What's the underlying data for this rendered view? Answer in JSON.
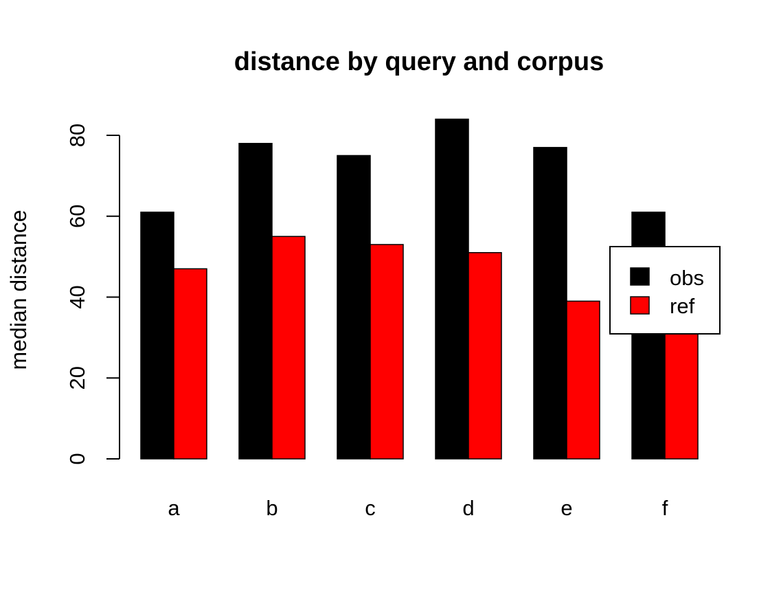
{
  "chart_data": {
    "type": "bar",
    "title": "distance by query and corpus",
    "xlabel": "",
    "ylabel": "median distance",
    "categories": [
      "a",
      "b",
      "c",
      "d",
      "e",
      "f"
    ],
    "series": [
      {
        "name": "obs",
        "color": "#000000",
        "values": [
          61,
          78,
          75,
          84,
          77,
          61
        ]
      },
      {
        "name": "ref",
        "color": "#ff0000",
        "values": [
          47,
          55,
          53,
          51,
          39,
          33
        ]
      }
    ],
    "ylim": [
      0,
      86
    ],
    "yticks": [
      0,
      20,
      40,
      60,
      80
    ],
    "grid": false,
    "legend_position": "right"
  }
}
